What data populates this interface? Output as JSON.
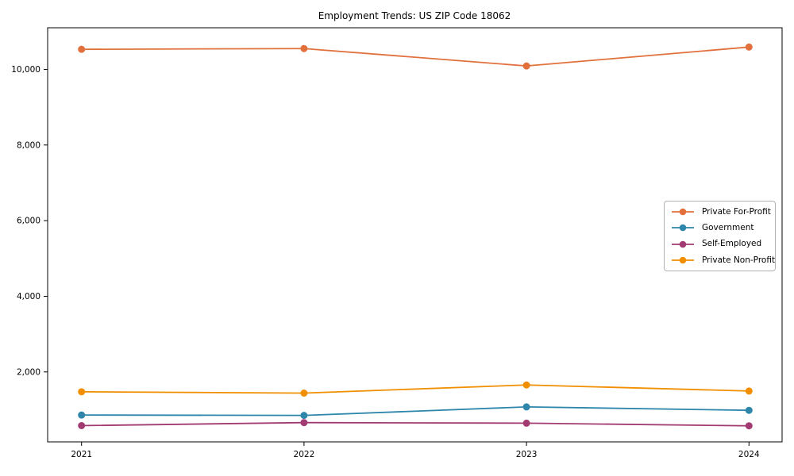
{
  "figure": {
    "title": "Employment Trends: US ZIP Code 18062"
  },
  "chart_data": {
    "type": "line",
    "title": "Employment Trends: US ZIP Code 18062",
    "x": [
      2021,
      2022,
      2023,
      2024
    ],
    "x_tick_labels": [
      "2021",
      "2022",
      "2023",
      "2024"
    ],
    "y_ticks": [
      2000,
      4000,
      6000,
      8000,
      10000
    ],
    "y_tick_labels": [
      "2,000",
      "4,000",
      "6,000",
      "8,000",
      "10,000"
    ],
    "ylim": [
      150,
      11100
    ],
    "grid": false,
    "legend_position": "center right",
    "axis_color": "#000000",
    "series": [
      {
        "name": "Private For-Profit",
        "color": "#E1703C",
        "values": [
          10530,
          10550,
          10090,
          10590
        ]
      },
      {
        "name": "Government",
        "color": "#2E86AB",
        "values": [
          860,
          850,
          1075,
          985
        ]
      },
      {
        "name": "Self-Employed",
        "color": "#A23B72",
        "values": [
          580,
          660,
          645,
          575
        ]
      },
      {
        "name": "Private Non-Profit",
        "color": "#F18F01",
        "values": [
          1475,
          1440,
          1655,
          1495
        ]
      }
    ]
  }
}
